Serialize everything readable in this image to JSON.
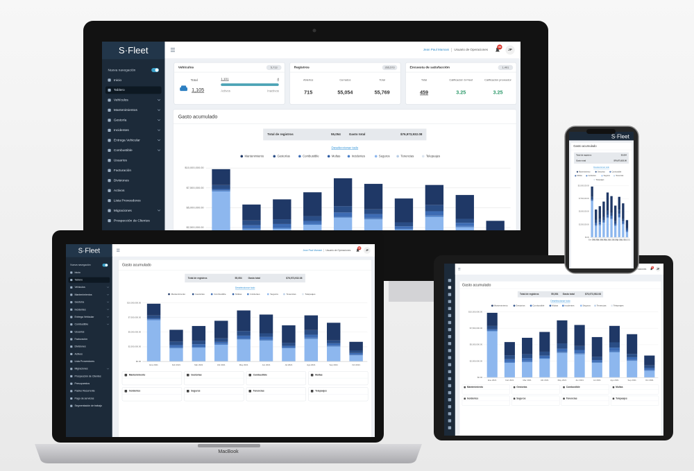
{
  "brand": "S·Fleet",
  "sidebar": {
    "toggle_label": "Nueva navegación",
    "items": [
      "Inicio",
      "Tablero",
      "Vehículos",
      "Mantenimientos",
      "Gestoría",
      "Incidentes",
      "Entrega Vehicular",
      "Combustible",
      "Usuarios",
      "Facturación",
      "Divisiones",
      "Activos",
      "Lista Proveedores",
      "Migraciones",
      "Prospección de Clientes",
      "Presupuestos",
      "Pasivo Recurrente",
      "Pago de servicios",
      "Segmentación de trabajo"
    ]
  },
  "topbar": {
    "user": "Jean Paul Mamani",
    "role": "Usuario de Operaciones",
    "notifications": 99,
    "initials": "JP"
  },
  "cards": {
    "vehicles": {
      "title": "Vehículos",
      "badge": "5,713",
      "total_label": "Total",
      "total": "1,105",
      "active": {
        "value": 1101,
        "label": "1,101"
      },
      "inactive": 4,
      "active_label": "Activos",
      "inactive_label": "Inactivos"
    },
    "records": {
      "title": "Registros",
      "badge": "265,573",
      "columns": [
        {
          "label": "Abiertos",
          "value": "715"
        },
        {
          "label": "Cerrados",
          "value": "55,054"
        },
        {
          "label": "Total",
          "value": "55,769"
        }
      ]
    },
    "survey": {
      "title": "Encuesta de satisfacción",
      "badge": "1,491",
      "columns": [
        {
          "label": "Total",
          "value": "459"
        },
        {
          "label": "Calificación S-Fleet",
          "value": "3.25"
        },
        {
          "label": "Calificación proveedor",
          "value": "3.25"
        }
      ]
    }
  },
  "summary": {
    "records_label": "Total de registros",
    "records": "55,054",
    "spend_label": "Gasto total",
    "spend": "$76,973,932.08"
  },
  "deselect": "Deseleccionar todo",
  "chart_data": {
    "type": "bar",
    "stacked": true,
    "title": "Gasto acumulado",
    "categories": [
      "Ene 2021",
      "Feb 2021",
      "Mar 2021",
      "Abr 2021",
      "May 2021",
      "Jun 2021",
      "Jul 2021",
      "Ago 2021",
      "Sep 2021",
      "Oct 2021"
    ],
    "series": [
      {
        "name": "Mantenimiento",
        "color": "#1f3866",
        "values": [
          2000000,
          2000000,
          2500000,
          3000000,
          3500000,
          3200000,
          3000000,
          2500000,
          3000000,
          1500000
        ]
      },
      {
        "name": "Gestorías",
        "color": "#2a4d85",
        "values": [
          500000,
          600000,
          600000,
          600000,
          800000,
          600000,
          500000,
          800000,
          500000,
          400000
        ]
      },
      {
        "name": "Combustible",
        "color": "#3d6cb4",
        "values": [
          150000,
          400000,
          400000,
          300000,
          500000,
          500000,
          300000,
          500000,
          400000,
          300000
        ]
      },
      {
        "name": "Multas",
        "color": "#2f5ca3",
        "values": [
          50000,
          40000,
          60000,
          50000,
          50000,
          40000,
          30000,
          60000,
          40000,
          30000
        ]
      },
      {
        "name": "Incidentes",
        "color": "#4b80c9",
        "values": [
          100000,
          120000,
          150000,
          140000,
          100000,
          120000,
          90000,
          150000,
          120000,
          80000
        ]
      },
      {
        "name": "Seguros",
        "color": "#8db7ee",
        "values": [
          7000000,
          2200000,
          2300000,
          2800000,
          3700000,
          3500000,
          2200000,
          3800000,
          2500000,
          1000000
        ]
      },
      {
        "name": "Tenencias",
        "color": "#b8cde6",
        "values": [
          30000,
          20000,
          20000,
          30000,
          30000,
          20000,
          20000,
          30000,
          20000,
          20000
        ]
      },
      {
        "name": "Telepeajes",
        "color": "#dce5ef",
        "values": [
          20000,
          20000,
          20000,
          20000,
          20000,
          20000,
          20000,
          20000,
          20000,
          20000
        ]
      }
    ],
    "ylim": [
      0,
      10000000
    ],
    "yticks": [
      {
        "value": 0,
        "label": "$0.00"
      },
      {
        "value": 2500000,
        "label": "$2,500,000.00"
      },
      {
        "value": 5000000,
        "label": "$5,000,000.00"
      },
      {
        "value": 7500000,
        "label": "$7,500,000.00"
      },
      {
        "value": 10000000,
        "label": "$10,000,000.00"
      }
    ],
    "grid": true
  },
  "device_label": "MacBook"
}
